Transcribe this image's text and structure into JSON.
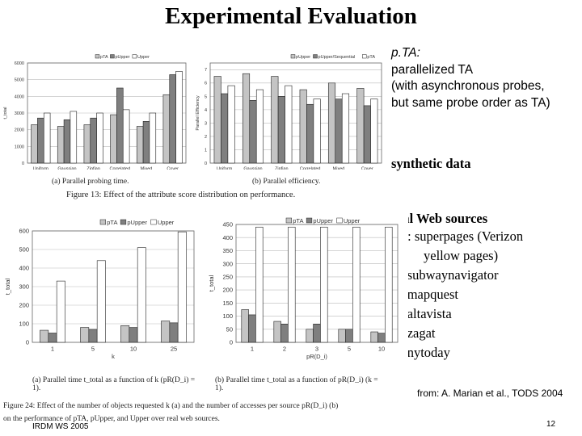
{
  "slide": {
    "title": "Experimental Evaluation",
    "footer": "IRDM WS 2005",
    "page_number": "12",
    "source": "from: A. Marian et al., TODS 2004"
  },
  "bullets": {
    "pta_head": "p.TA:",
    "pta_lines": [
      "parallelized TA",
      "(with asynchronous probes,",
      "but same probe order as TA)"
    ],
    "synthetic": "synthetic data",
    "real": "real Web sources",
    "sources": [
      {
        "label": "SR: superpages (Verizon"
      },
      {
        "label": "yellow pages)"
      },
      {
        "label": "R: subwaynavigator"
      },
      {
        "label": "R: mapquest"
      },
      {
        "label": "R: altavista"
      },
      {
        "label": "R: zagat"
      },
      {
        "label": "R: nytoday"
      }
    ]
  },
  "figures": {
    "fig13_caption": "Figure 13: Effect of the attribute score distribution on performance.",
    "fig13a_caption": "(a) Parallel probing time.",
    "fig13b_caption": "(b) Parallel efficiency.",
    "fig24_caption_1": "Figure 24: Effect of the number of objects requested k (a) and the number of accesses per source pR(D_i) (b)",
    "fig24_caption_2": "on the performance of pTA, pUpper, and Upper over real web sources.",
    "fig24a_caption_1": "(a) Parallel time t_total as a function of k (pR(D_i) =",
    "fig24a_caption_2": "1).",
    "fig24b_caption_1": "(b) Parallel time t_total as a function of pR(D_i) (k =",
    "fig24b_caption_2": "1)."
  },
  "chart_data": [
    {
      "id": "fig13a",
      "type": "bar",
      "title": "",
      "legend": [
        "pTA",
        "pUpper",
        "Upper"
      ],
      "ylabel": "t_total",
      "xlabel": "",
      "categories": [
        "Uniform",
        "Gaussian",
        "Zipfian",
        "Correlated",
        "Mixed",
        "Cover"
      ],
      "series": [
        {
          "name": "pTA",
          "values": [
            2300,
            2200,
            2300,
            2900,
            2200,
            4100
          ]
        },
        {
          "name": "pUpper",
          "values": [
            2700,
            2600,
            2700,
            4500,
            2500,
            5300
          ]
        },
        {
          "name": "Upper",
          "values": [
            3000,
            3100,
            3000,
            3200,
            3000,
            5500
          ]
        }
      ],
      "yticks": [
        0,
        1000,
        2000,
        3000,
        4000,
        5000,
        6000
      ],
      "ytick_labels": [
        "0",
        "1000",
        "2000",
        "3000",
        "4000",
        "5000",
        "6000"
      ],
      "ylim": [
        0,
        6000
      ]
    },
    {
      "id": "fig13b",
      "type": "bar",
      "legend": [
        "pUpper",
        "pUpper/Sequential",
        "pTA"
      ],
      "ylabel": "Parallel Efficiency",
      "xlabel": "",
      "categories": [
        "Uniform",
        "Gaussian",
        "Zipfian",
        "Correlated",
        "Mixed",
        "Cover"
      ],
      "series": [
        {
          "name": "pUpper",
          "values": [
            6.5,
            6.7,
            6.5,
            5.5,
            6.0,
            5.6
          ]
        },
        {
          "name": "pUpper/Sequential",
          "values": [
            5.2,
            4.7,
            5.0,
            4.4,
            4.8,
            4.3
          ]
        },
        {
          "name": "pTA",
          "values": [
            5.8,
            5.5,
            5.8,
            4.8,
            5.2,
            4.8
          ]
        }
      ],
      "yticks": [
        0,
        1,
        2,
        3,
        4,
        5,
        6,
        7
      ],
      "ytick_labels": [
        "0",
        "1",
        "2",
        "3",
        "4",
        "5",
        "6",
        "7"
      ],
      "ylim": [
        0,
        7.5
      ]
    },
    {
      "id": "fig24a",
      "type": "bar",
      "legend": [
        "pTA",
        "pUpper",
        "Upper"
      ],
      "ylabel": "t_total",
      "xlabel": "k",
      "categories": [
        "1",
        "5",
        "10",
        "25"
      ],
      "series": [
        {
          "name": "pTA",
          "values": [
            65,
            80,
            90,
            115
          ]
        },
        {
          "name": "pUpper",
          "values": [
            50,
            70,
            80,
            105
          ]
        },
        {
          "name": "Upper",
          "values": [
            330,
            440,
            510,
            595
          ]
        }
      ],
      "yticks": [
        0,
        100,
        200,
        300,
        400,
        500,
        600
      ],
      "ytick_labels": [
        "0",
        "100",
        "200",
        "300",
        "400",
        "500",
        "600"
      ],
      "ylim": [
        0,
        600
      ]
    },
    {
      "id": "fig24b",
      "type": "bar",
      "legend": [
        "pTA",
        "pUpper",
        "Upper"
      ],
      "ylabel": "t_total",
      "xlabel": "pR(D_i)",
      "categories": [
        "1",
        "2",
        "3",
        "5",
        "10"
      ],
      "series": [
        {
          "name": "pTA",
          "values": [
            125,
            80,
            50,
            50,
            40
          ]
        },
        {
          "name": "pUpper",
          "values": [
            105,
            70,
            70,
            50,
            35
          ]
        },
        {
          "name": "Upper",
          "values": [
            440,
            440,
            440,
            440,
            440
          ]
        }
      ],
      "yticks": [
        0,
        50,
        100,
        150,
        200,
        250,
        300,
        350,
        400,
        450
      ],
      "ytick_labels": [
        "0",
        "50",
        "100",
        "150",
        "200",
        "250",
        "300",
        "350",
        "400",
        "450"
      ],
      "ylim": [
        0,
        450
      ]
    }
  ]
}
